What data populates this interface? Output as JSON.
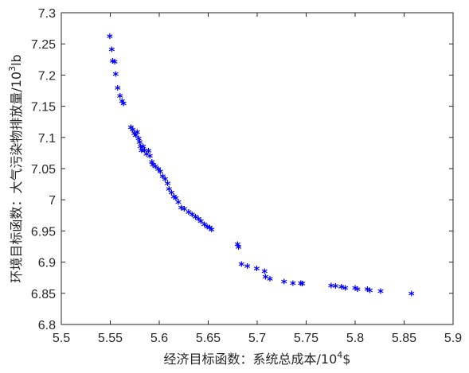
{
  "chart_data": {
    "type": "scatter",
    "title": "",
    "xlabel_main": "经济目标函数：系统总成本/10",
    "xlabel_sup": "4",
    "xlabel_unit": "$",
    "ylabel_main": "环境目标函数：大气污染物排放量/10",
    "ylabel_sup": "3",
    "ylabel_unit": "lb",
    "xlim": [
      5.5,
      5.9
    ],
    "ylim": [
      6.8,
      7.3
    ],
    "x_ticks": [
      "5.5",
      "5.55",
      "5.6",
      "5.65",
      "5.7",
      "5.75",
      "5.8",
      "5.85",
      "5.9"
    ],
    "y_ticks": [
      "6.8",
      "6.85",
      "6.9",
      "6.95",
      "7",
      "7.05",
      "7.1",
      "7.15",
      "7.2",
      "7.25",
      "7.3"
    ],
    "grid": false,
    "marker": "*",
    "color": "#0000ff",
    "points": [
      [
        5.5495,
        7.262
      ],
      [
        5.5515,
        7.241
      ],
      [
        5.5525,
        7.222
      ],
      [
        5.5545,
        7.221
      ],
      [
        5.5555,
        7.201
      ],
      [
        5.5575,
        7.179
      ],
      [
        5.56,
        7.166
      ],
      [
        5.562,
        7.158
      ],
      [
        5.5635,
        7.154
      ],
      [
        5.571,
        7.116
      ],
      [
        5.573,
        7.112
      ],
      [
        5.5745,
        7.106
      ],
      [
        5.576,
        7.103
      ],
      [
        5.5775,
        7.108
      ],
      [
        5.579,
        7.098
      ],
      [
        5.58,
        7.092
      ],
      [
        5.581,
        7.085
      ],
      [
        5.582,
        7.079
      ],
      [
        5.5835,
        7.085
      ],
      [
        5.585,
        7.079
      ],
      [
        5.587,
        7.073
      ],
      [
        5.589,
        7.078
      ],
      [
        5.5905,
        7.07
      ],
      [
        5.5925,
        7.06
      ],
      [
        5.5935,
        7.056
      ],
      [
        5.596,
        7.053
      ],
      [
        5.599,
        7.049
      ],
      [
        5.601,
        7.045
      ],
      [
        5.6035,
        7.037
      ],
      [
        5.606,
        7.033
      ],
      [
        5.6085,
        7.026
      ],
      [
        5.61,
        7.017
      ],
      [
        5.6125,
        7.011
      ],
      [
        5.615,
        7.005
      ],
      [
        5.617,
        7.002
      ],
      [
        5.6195,
        6.996
      ],
      [
        5.6225,
        6.987
      ],
      [
        5.6255,
        6.985
      ],
      [
        5.63,
        6.98
      ],
      [
        5.6335,
        6.976
      ],
      [
        5.637,
        6.972
      ],
      [
        5.64,
        6.969
      ],
      [
        5.6425,
        6.965
      ],
      [
        5.646,
        6.96
      ],
      [
        5.649,
        6.956
      ],
      [
        5.6515,
        6.955
      ],
      [
        5.6535,
        6.952
      ],
      [
        5.68,
        6.928
      ],
      [
        5.681,
        6.924
      ],
      [
        5.684,
        6.896
      ],
      [
        5.69,
        6.893
      ],
      [
        5.6995,
        6.889
      ],
      [
        5.7075,
        6.885
      ],
      [
        5.7085,
        6.876
      ],
      [
        5.713,
        6.873
      ],
      [
        5.7275,
        6.868
      ],
      [
        5.7365,
        6.866
      ],
      [
        5.7445,
        6.866
      ],
      [
        5.746,
        6.865
      ],
      [
        5.7755,
        6.862
      ],
      [
        5.78,
        6.861
      ],
      [
        5.786,
        6.86
      ],
      [
        5.79,
        6.858
      ],
      [
        5.8,
        6.858
      ],
      [
        5.8025,
        6.856
      ],
      [
        5.8125,
        6.856
      ],
      [
        5.815,
        6.854
      ],
      [
        5.826,
        6.853
      ],
      [
        5.8575,
        6.849
      ]
    ]
  }
}
